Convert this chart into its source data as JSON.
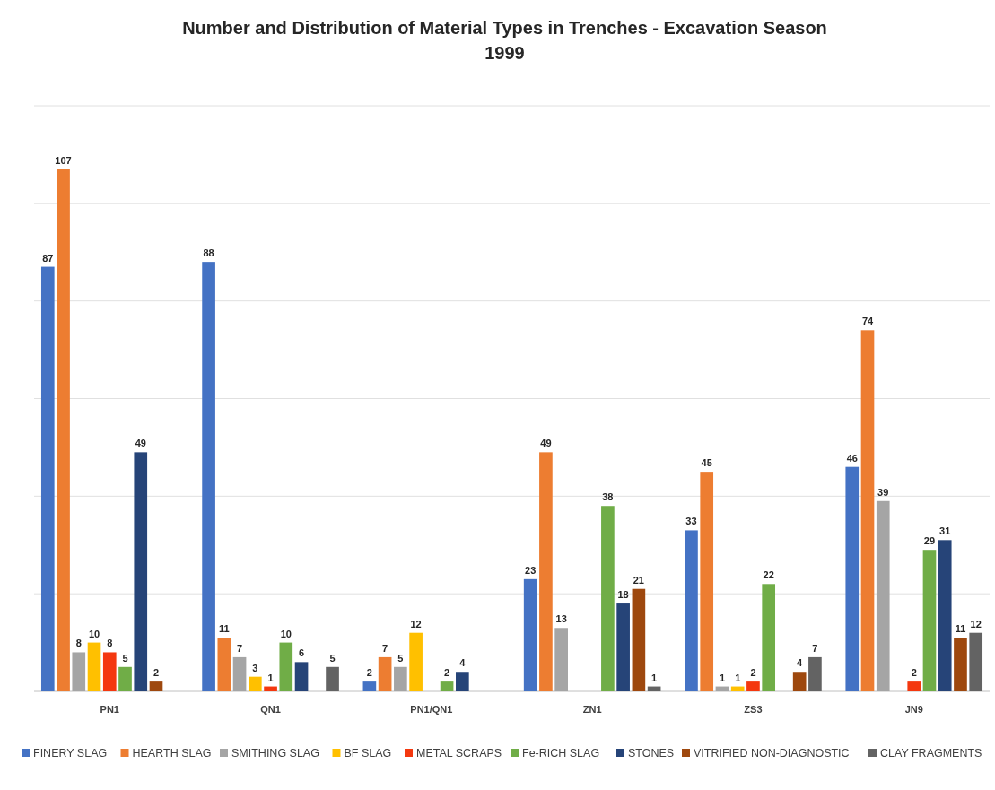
{
  "chart_data": {
    "type": "bar",
    "title": "Number and Distribution of Material Types in Trenches - Excavation Season 1999",
    "categories": [
      "PN1",
      "QN1",
      "PN1/QN1",
      "ZN1",
      "ZS3",
      "JN9"
    ],
    "series": [
      {
        "name": "FINERY SLAG",
        "color": "#4472c4",
        "values": [
          87,
          88,
          2,
          23,
          33,
          46
        ]
      },
      {
        "name": "HEARTH SLAG",
        "color": "#ed7d31",
        "values": [
          107,
          11,
          7,
          49,
          45,
          74
        ]
      },
      {
        "name": "SMITHING SLAG",
        "color": "#a5a5a5",
        "values": [
          8,
          7,
          5,
          13,
          1,
          39
        ]
      },
      {
        "name": "BF SLAG",
        "color": "#ffc000",
        "values": [
          10,
          3,
          12,
          null,
          1,
          null
        ]
      },
      {
        "name": "METAL SCRAPS",
        "color": "#f4380f",
        "values": [
          8,
          1,
          null,
          null,
          2,
          2
        ]
      },
      {
        "name": "Fe-RICH SLAG",
        "color": "#70ad47",
        "values": [
          5,
          10,
          2,
          38,
          22,
          29
        ]
      },
      {
        "name": "STONES",
        "color": "#264478",
        "values": [
          49,
          6,
          4,
          18,
          null,
          31
        ]
      },
      {
        "name": "VITRIFIED NON-DIAGNOSTIC",
        "color": "#9e480e",
        "values": [
          2,
          null,
          null,
          21,
          4,
          11
        ]
      },
      {
        "name": "CLAY FRAGMENTS",
        "color": "#636363",
        "values": [
          null,
          5,
          null,
          1,
          7,
          12
        ]
      }
    ],
    "ylim": [
      0,
      120
    ],
    "yticks": [
      {
        "value": 0,
        "label": null
      },
      {
        "value": 20,
        "label": null
      },
      {
        "value": 40,
        "label": null
      },
      {
        "value": 60,
        "label": null
      },
      {
        "value": 80,
        "label": null
      },
      {
        "value": 100,
        "label": null
      },
      {
        "value": 120,
        "label": null
      }
    ],
    "tick_labels": "x",
    "grid": "y",
    "legend": "bottom",
    "data_labels": true
  }
}
